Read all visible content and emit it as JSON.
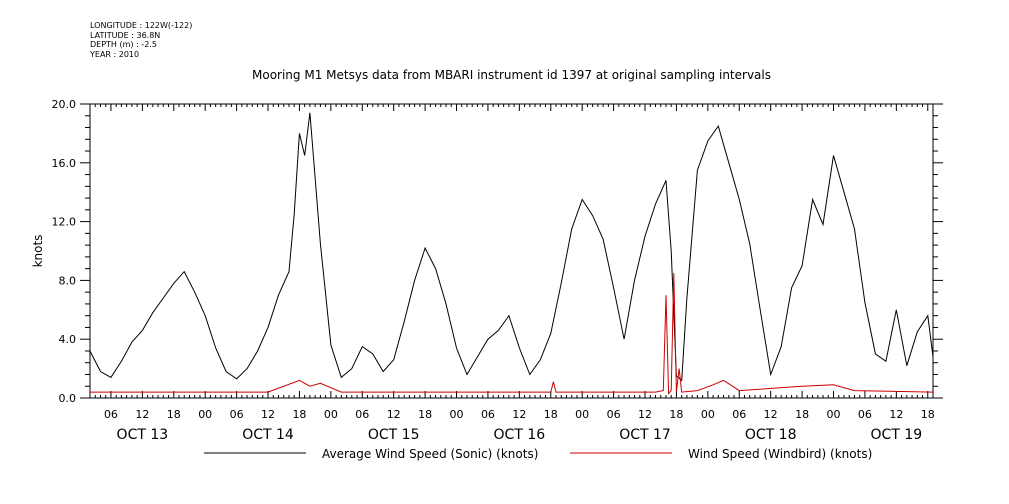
{
  "header": {
    "longitude": "LONGITUDE : 122W(-122)",
    "latitude": "LATITUDE : 36.8N",
    "depth": "DEPTH (m) : -2.5",
    "year": "YEAR : 2010",
    "title": "Mooring M1 Metsys data from MBARI instrument id 1397 at original sampling intervals"
  },
  "chart_data": {
    "type": "line",
    "title": "Mooring M1 Metsys data from MBARI instrument id 1397 at original sampling intervals",
    "ylabel": "knots",
    "xlabel": "",
    "ylim": [
      0,
      20
    ],
    "yticks": [
      "0.0",
      "4.0",
      "8.0",
      "12.0",
      "16.0",
      "20.0"
    ],
    "yvals": [
      0,
      4,
      8,
      12,
      16,
      20
    ],
    "xlim": [
      "2010-10-13T02:00",
      "2010-10-19T19:00"
    ],
    "hour_ticks": [
      "06",
      "12",
      "18",
      "00",
      "06",
      "12",
      "18",
      "00",
      "06",
      "12",
      "18",
      "00",
      "06",
      "12",
      "18",
      "00",
      "06",
      "12",
      "18",
      "00",
      "06",
      "12",
      "18",
      "00",
      "06",
      "12",
      "18"
    ],
    "hour_tick_times": [
      "2010-10-13T06:00",
      "2010-10-13T12:00",
      "2010-10-13T18:00",
      "2010-10-14T00:00",
      "2010-10-14T06:00",
      "2010-10-14T12:00",
      "2010-10-14T18:00",
      "2010-10-15T00:00",
      "2010-10-15T06:00",
      "2010-10-15T12:00",
      "2010-10-15T18:00",
      "2010-10-16T00:00",
      "2010-10-16T06:00",
      "2010-10-16T12:00",
      "2010-10-16T18:00",
      "2010-10-17T00:00",
      "2010-10-17T06:00",
      "2010-10-17T12:00",
      "2010-10-17T18:00",
      "2010-10-18T00:00",
      "2010-10-18T06:00",
      "2010-10-18T12:00",
      "2010-10-18T18:00",
      "2010-10-19T00:00",
      "2010-10-19T06:00",
      "2010-10-19T12:00",
      "2010-10-19T18:00"
    ],
    "day_labels": [
      "OCT 13",
      "OCT 14",
      "OCT 15",
      "OCT 16",
      "OCT 17",
      "OCT 18",
      "OCT 19"
    ],
    "day_label_times": [
      "2010-10-13T12:00",
      "2010-10-14T12:00",
      "2010-10-15T12:00",
      "2010-10-16T12:00",
      "2010-10-17T12:00",
      "2010-10-18T12:00",
      "2010-10-19T12:00"
    ],
    "grid": false,
    "legend_position": "bottom",
    "series": [
      {
        "name": "Average Wind Speed (Sonic) (knots)",
        "color": "#000000",
        "x": [
          "2010-10-13T02:00",
          "2010-10-13T04:00",
          "2010-10-13T06:00",
          "2010-10-13T08:00",
          "2010-10-13T10:00",
          "2010-10-13T12:00",
          "2010-10-13T14:00",
          "2010-10-13T16:00",
          "2010-10-13T18:00",
          "2010-10-13T20:00",
          "2010-10-13T22:00",
          "2010-10-14T00:00",
          "2010-10-14T02:00",
          "2010-10-14T04:00",
          "2010-10-14T06:00",
          "2010-10-14T08:00",
          "2010-10-14T10:00",
          "2010-10-14T12:00",
          "2010-10-14T14:00",
          "2010-10-14T16:00",
          "2010-10-14T17:00",
          "2010-10-14T18:00",
          "2010-10-14T19:00",
          "2010-10-14T20:00",
          "2010-10-14T21:00",
          "2010-10-14T22:00",
          "2010-10-15T00:00",
          "2010-10-15T02:00",
          "2010-10-15T04:00",
          "2010-10-15T06:00",
          "2010-10-15T08:00",
          "2010-10-15T10:00",
          "2010-10-15T12:00",
          "2010-10-15T14:00",
          "2010-10-15T16:00",
          "2010-10-15T18:00",
          "2010-10-15T20:00",
          "2010-10-15T22:00",
          "2010-10-16T00:00",
          "2010-10-16T02:00",
          "2010-10-16T04:00",
          "2010-10-16T06:00",
          "2010-10-16T08:00",
          "2010-10-16T10:00",
          "2010-10-16T12:00",
          "2010-10-16T14:00",
          "2010-10-16T16:00",
          "2010-10-16T18:00",
          "2010-10-16T20:00",
          "2010-10-16T22:00",
          "2010-10-17T00:00",
          "2010-10-17T02:00",
          "2010-10-17T04:00",
          "2010-10-17T06:00",
          "2010-10-17T08:00",
          "2010-10-17T10:00",
          "2010-10-17T12:00",
          "2010-10-17T14:00",
          "2010-10-17T16:00",
          "2010-10-17T17:00",
          "2010-10-17T18:00",
          "2010-10-17T19:00",
          "2010-10-17T20:00",
          "2010-10-17T22:00",
          "2010-10-18T00:00",
          "2010-10-18T02:00",
          "2010-10-18T04:00",
          "2010-10-18T06:00",
          "2010-10-18T08:00",
          "2010-10-18T10:00",
          "2010-10-18T12:00",
          "2010-10-18T14:00",
          "2010-10-18T16:00",
          "2010-10-18T18:00",
          "2010-10-18T20:00",
          "2010-10-18T22:00",
          "2010-10-19T00:00",
          "2010-10-19T02:00",
          "2010-10-19T04:00",
          "2010-10-19T06:00",
          "2010-10-19T08:00",
          "2010-10-19T10:00",
          "2010-10-19T12:00",
          "2010-10-19T14:00",
          "2010-10-19T16:00",
          "2010-10-19T18:00",
          "2010-10-19T19:00"
        ],
        "y": [
          3.2,
          1.8,
          1.4,
          2.5,
          3.8,
          4.6,
          5.8,
          6.8,
          7.8,
          8.6,
          7.2,
          5.6,
          3.4,
          1.8,
          1.3,
          2.0,
          3.2,
          4.8,
          7.0,
          8.6,
          12.5,
          18.0,
          16.5,
          19.4,
          15.0,
          10.5,
          3.6,
          1.4,
          2.0,
          3.5,
          3.0,
          1.8,
          2.6,
          5.2,
          8.0,
          10.2,
          8.8,
          6.4,
          3.4,
          1.6,
          2.8,
          4.0,
          4.6,
          5.6,
          3.4,
          1.6,
          2.6,
          4.4,
          7.8,
          11.5,
          13.5,
          12.4,
          10.8,
          7.5,
          4.0,
          8.0,
          11.0,
          13.2,
          14.8,
          10.0,
          1.5,
          1.2,
          6.8,
          15.5,
          17.5,
          18.5,
          16.0,
          13.5,
          10.5,
          6.0,
          1.6,
          3.5,
          7.5,
          9.0,
          13.5,
          11.8,
          16.5,
          14.0,
          11.5,
          6.5,
          3.0,
          2.5,
          6.0,
          2.2,
          4.5,
          5.6,
          2.8
        ]
      },
      {
        "name": "Wind Speed (Windbird) (knots)",
        "color": "#cc0000",
        "x": [
          "2010-10-13T02:00",
          "2010-10-14T12:00",
          "2010-10-14T18:00",
          "2010-10-14T20:00",
          "2010-10-14T22:00",
          "2010-10-15T02:00",
          "2010-10-16T18:00",
          "2010-10-16T18:30",
          "2010-10-16T19:00",
          "2010-10-17T14:00",
          "2010-10-17T15:30",
          "2010-10-17T16:00",
          "2010-10-17T16:30",
          "2010-10-17T17:00",
          "2010-10-17T17:30",
          "2010-10-17T18:00",
          "2010-10-17T18:30",
          "2010-10-17T19:00",
          "2010-10-17T22:00",
          "2010-10-18T01:00",
          "2010-10-18T03:00",
          "2010-10-18T06:00",
          "2010-10-18T18:00",
          "2010-10-19T00:00",
          "2010-10-19T04:00",
          "2010-10-19T19:00"
        ],
        "y": [
          0.4,
          0.4,
          1.2,
          0.8,
          1.0,
          0.4,
          0.4,
          1.1,
          0.4,
          0.4,
          0.5,
          7.0,
          0.3,
          0.5,
          8.5,
          0.4,
          2.0,
          0.4,
          0.5,
          0.9,
          1.2,
          0.5,
          0.8,
          0.9,
          0.5,
          0.4
        ]
      }
    ]
  }
}
